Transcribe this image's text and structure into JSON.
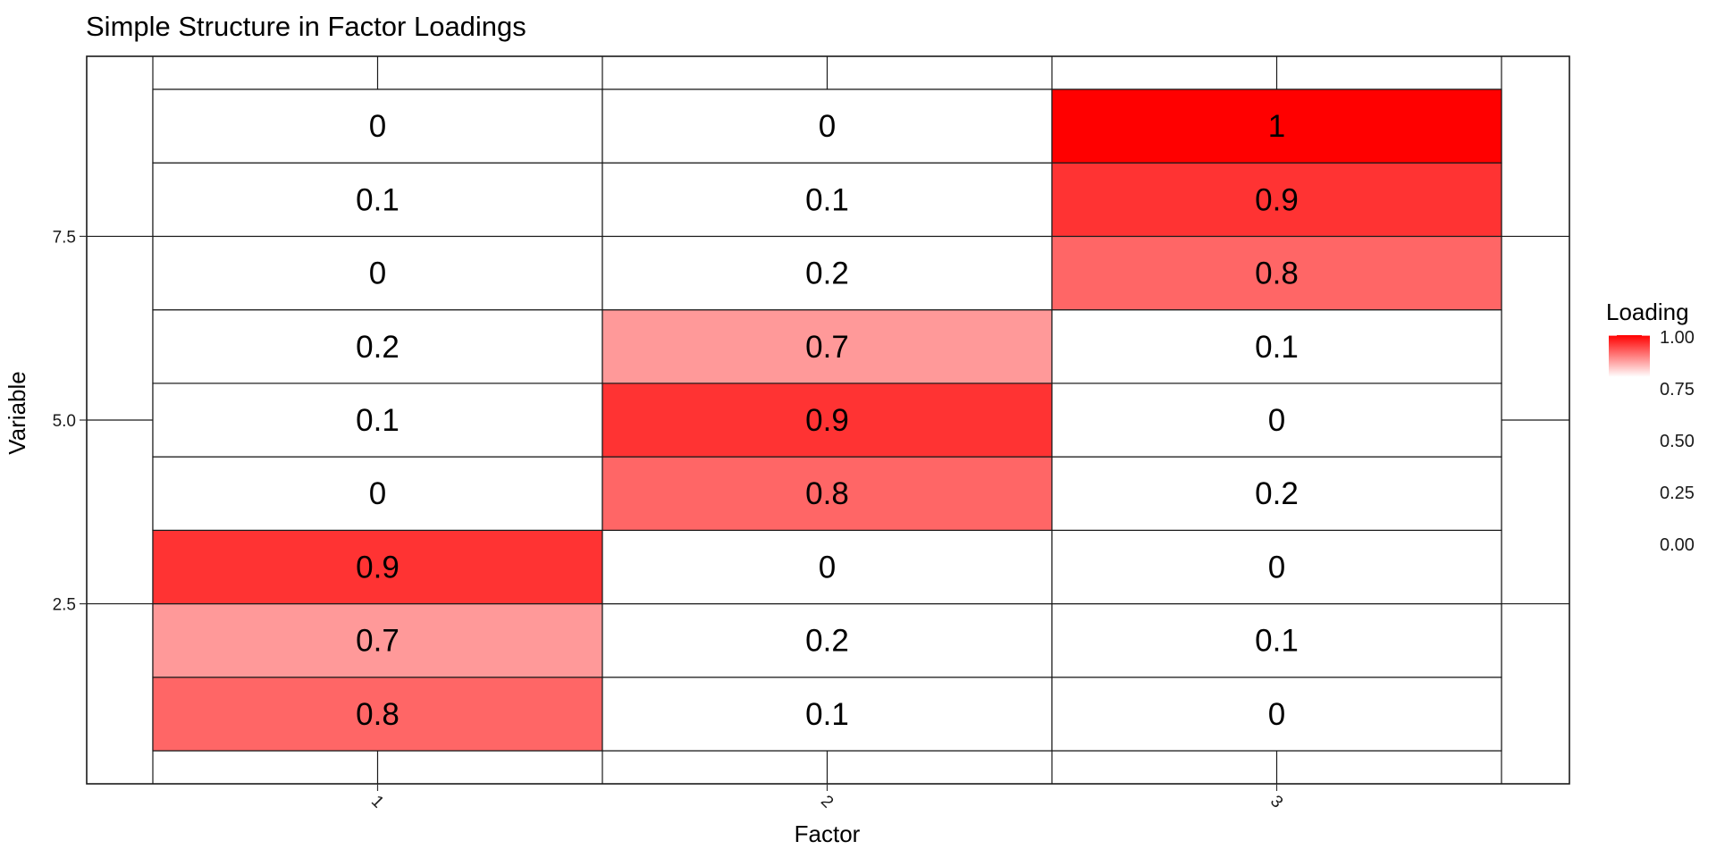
{
  "chart_data": {
    "type": "heatmap",
    "title": "Simple Structure in Factor Loadings",
    "xlabel": "Factor",
    "ylabel": "Variable",
    "x_categories": [
      "1",
      "2",
      "3"
    ],
    "variables": [
      1,
      2,
      3,
      4,
      5,
      6,
      7,
      8,
      9
    ],
    "values": [
      [
        0.8,
        0.1,
        0
      ],
      [
        0.7,
        0.2,
        0.1
      ],
      [
        0.9,
        0,
        0
      ],
      [
        0,
        0.8,
        0.2
      ],
      [
        0.1,
        0.9,
        0
      ],
      [
        0.2,
        0.7,
        0.1
      ],
      [
        0,
        0.2,
        0.8
      ],
      [
        0.1,
        0.1,
        0.9
      ],
      [
        0,
        0,
        1
      ]
    ],
    "y_ticks": [
      2.5,
      5.0,
      7.5
    ],
    "y_tick_labels": [
      "2.5",
      "5.0",
      "7.5"
    ],
    "ylim": [
      0.05,
      9.95
    ],
    "legend": {
      "title": "Loading",
      "labels": [
        "1.00",
        "0.75",
        "0.50",
        "0.25",
        "0.00"
      ],
      "values": [
        1.0,
        0.75,
        0.5,
        0.25,
        0.0
      ],
      "placement": "right"
    },
    "color_scale": {
      "low": "#ffffff",
      "mid": "#ffffff",
      "high": "#ff0000",
      "midpoint": 0.5,
      "limits": [
        0,
        1
      ]
    },
    "grid": true
  }
}
